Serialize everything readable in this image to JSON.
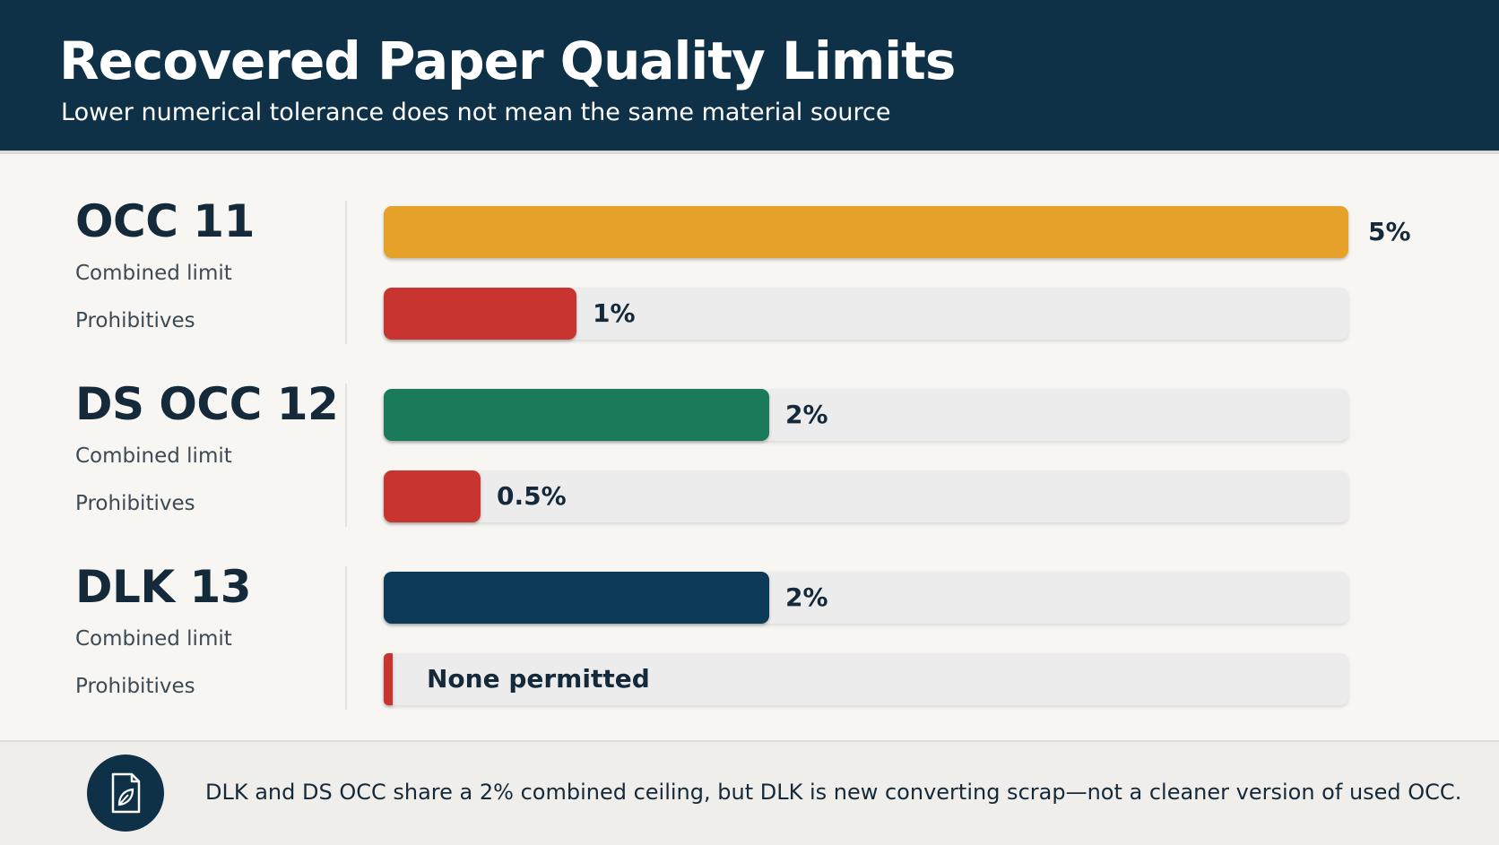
{
  "header": {
    "title": "Recovered Paper Quality Limits",
    "subtitle": "Lower numerical tolerance does not mean the same material source"
  },
  "chart_data": {
    "type": "bar",
    "orientation": "horizontal",
    "unit": "%",
    "xlim": [
      0,
      5
    ],
    "groups": [
      {
        "name": "OCC 11",
        "rows": [
          {
            "label": "Combined limit",
            "value": 5,
            "value_label": "5%",
            "color": "#e6a12a"
          },
          {
            "label": "Prohibitives",
            "value": 1,
            "value_label": "1%",
            "color": "#c8342f"
          }
        ]
      },
      {
        "name": "DS OCC 12",
        "rows": [
          {
            "label": "Combined limit",
            "value": 2,
            "value_label": "2%",
            "color": "#1b7a5a"
          },
          {
            "label": "Prohibitives",
            "value": 0.5,
            "value_label": "0.5%",
            "color": "#c8342f"
          }
        ]
      },
      {
        "name": "DLK 13",
        "rows": [
          {
            "label": "Combined limit",
            "value": 2,
            "value_label": "2%",
            "color": "#0e3a5a"
          },
          {
            "label": "Prohibitives",
            "value": 0,
            "value_label": "None permitted",
            "color": "#c8342f"
          }
        ]
      }
    ]
  },
  "footer": {
    "icon": "document-leaf-icon",
    "text": "DLK and DS OCC share a 2% combined ceiling, but DLK is new converting scrap—not a cleaner version of used OCC."
  }
}
